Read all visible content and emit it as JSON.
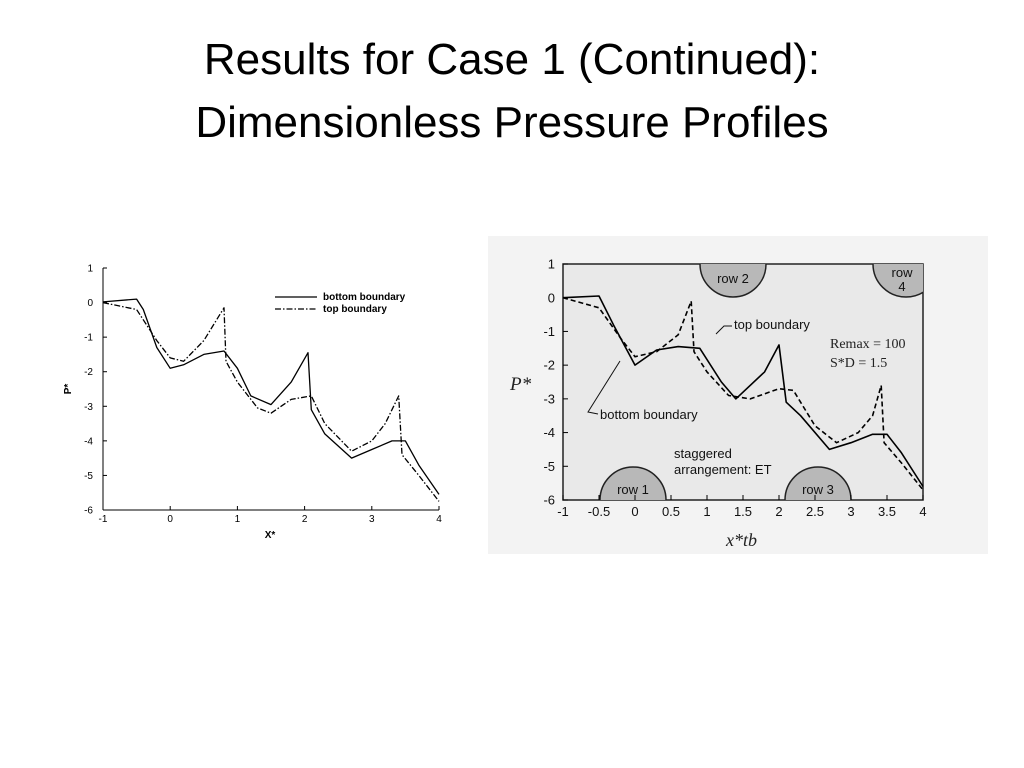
{
  "slide": {
    "title_line1": "Results for Case 1 (Continued):",
    "title_line2": "Dimensionless Pressure Profiles"
  },
  "colors": {
    "line": "#000000",
    "panel_bg": "#ececec",
    "cylinder": "#b8b8b8"
  },
  "chart_data": [
    {
      "type": "line",
      "xlabel": "X*",
      "ylabel": "P*",
      "xlim": [
        -1,
        4
      ],
      "ylim": [
        -6,
        1
      ],
      "xticks": [
        "-1",
        "0",
        "1",
        "2",
        "3",
        "4"
      ],
      "yticks": [
        "1",
        "0",
        "-1",
        "-2",
        "-3",
        "-4",
        "-5",
        "-6"
      ],
      "grid": false,
      "legend_position": "top-right",
      "series": [
        {
          "name": "bottom boundary",
          "style": "solid",
          "x": [
            -1,
            -0.5,
            -0.4,
            -0.2,
            0,
            0.2,
            0.5,
            0.8,
            1.0,
            1.2,
            1.5,
            1.8,
            2.05,
            2.1,
            2.3,
            2.7,
            3.0,
            3.3,
            3.5,
            3.7,
            4.0
          ],
          "y": [
            0.02,
            0.1,
            -0.2,
            -1.3,
            -1.9,
            -1.8,
            -1.5,
            -1.4,
            -1.9,
            -2.7,
            -2.95,
            -2.3,
            -1.45,
            -3.1,
            -3.8,
            -4.5,
            -4.25,
            -4.0,
            -4.0,
            -4.7,
            -5.55
          ]
        },
        {
          "name": "top boundary",
          "style": "dashdot",
          "x": [
            -1,
            -0.5,
            -0.2,
            0,
            0.2,
            0.5,
            0.8,
            0.83,
            1.0,
            1.3,
            1.5,
            1.8,
            2.1,
            2.3,
            2.7,
            3.0,
            3.2,
            3.4,
            3.45,
            3.7,
            4.0
          ],
          "y": [
            0.0,
            -0.2,
            -1.1,
            -1.6,
            -1.7,
            -1.1,
            -0.15,
            -1.7,
            -2.3,
            -3.05,
            -3.2,
            -2.8,
            -2.7,
            -3.5,
            -4.3,
            -4.0,
            -3.5,
            -2.7,
            -4.4,
            -5.0,
            -5.75
          ]
        }
      ]
    },
    {
      "type": "line",
      "xlabel": "x*tb",
      "ylabel": "P*",
      "xlim": [
        -1,
        4
      ],
      "ylim": [
        -6,
        1
      ],
      "xticks": [
        "-1",
        "-0.5",
        "0",
        "0.5",
        "1",
        "1.5",
        "2",
        "2.5",
        "3",
        "3.5",
        "4"
      ],
      "yticks": [
        "1",
        "0",
        "-1",
        "-2",
        "-3",
        "-4",
        "-5",
        "-6"
      ],
      "grid": false,
      "series": [
        {
          "name": "bottom boundary",
          "style": "solid",
          "x": [
            -1,
            -0.5,
            -0.3,
            0,
            0.3,
            0.6,
            0.9,
            1.2,
            1.4,
            1.8,
            2.0,
            2.1,
            2.3,
            2.7,
            3.0,
            3.3,
            3.5,
            3.7,
            4.0
          ],
          "y": [
            0.0,
            0.05,
            -0.8,
            -2.0,
            -1.55,
            -1.45,
            -1.5,
            -2.5,
            -3.0,
            -2.2,
            -1.4,
            -3.1,
            -3.5,
            -4.5,
            -4.3,
            -4.05,
            -4.05,
            -4.6,
            -5.6
          ]
        },
        {
          "name": "top boundary",
          "style": "dashed",
          "x": [
            -1,
            -0.5,
            -0.2,
            0,
            0.3,
            0.6,
            0.78,
            0.82,
            1.0,
            1.3,
            1.6,
            2.0,
            2.2,
            2.5,
            2.8,
            3.1,
            3.3,
            3.42,
            3.46,
            3.7,
            4.0
          ],
          "y": [
            0.0,
            -0.3,
            -1.2,
            -1.75,
            -1.6,
            -1.1,
            -0.1,
            -1.6,
            -2.2,
            -2.9,
            -3.0,
            -2.7,
            -2.75,
            -3.8,
            -4.3,
            -4.0,
            -3.5,
            -2.6,
            -4.3,
            -4.9,
            -5.7
          ]
        }
      ],
      "annotations": {
        "cylinders": [
          "row 2",
          "row 4",
          "row 1",
          "row 3"
        ],
        "parameters": [
          "Remax = 100",
          "S*D = 1.5"
        ],
        "arrangement": [
          "staggered",
          "arrangement: ET"
        ]
      }
    }
  ]
}
